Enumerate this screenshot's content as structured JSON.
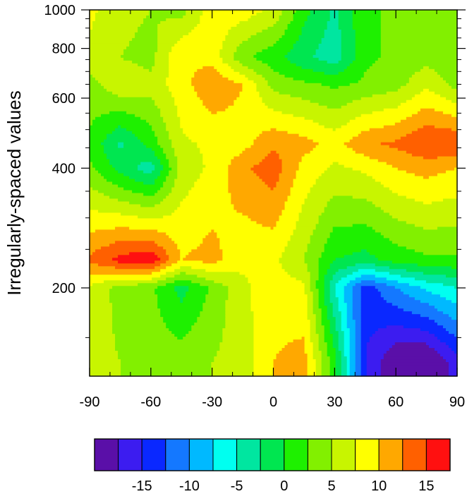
{
  "chart_data": {
    "type": "heatmap",
    "ylabel": "Irregularly-spaced values",
    "y_scale": "log",
    "xlim": [
      -90,
      90
    ],
    "ylim": [
      120,
      1000
    ],
    "xticks": [
      -90,
      -60,
      -30,
      0,
      30,
      60,
      90
    ],
    "xtick_labels": [
      "-90",
      "-60",
      "-30",
      "0",
      "30",
      "60",
      "90"
    ],
    "yticks": [
      200,
      400,
      600,
      800,
      1000
    ],
    "ytick_labels": [
      "200",
      "400",
      "600",
      "800",
      "1000"
    ],
    "grid": false,
    "colorbar": {
      "orientation": "horizontal",
      "placement": "bottom",
      "boundaries": [
        -17.5,
        -15,
        -12.5,
        -10,
        -7.5,
        -5,
        -2.5,
        0,
        2.5,
        5,
        7.5,
        10,
        12.5,
        15
      ],
      "labels": [
        "-15",
        "-10",
        "-5",
        "0",
        "5",
        "10",
        "15"
      ],
      "label_values": [
        -15,
        -10,
        -5,
        0,
        5,
        10,
        15
      ],
      "colors": [
        "#5a0fa8",
        "#3c1cf0",
        "#0a28ff",
        "#1478ff",
        "#00b9ff",
        "#00fff0",
        "#00e6a0",
        "#00e650",
        "#1ef000",
        "#82f000",
        "#c8f500",
        "#ffff00",
        "#ffa800",
        "#ff6000",
        "#ff1010"
      ]
    },
    "x": [
      -90,
      -75,
      -60,
      -45,
      -30,
      -15,
      0,
      15,
      30,
      45,
      60,
      75,
      90
    ],
    "y": [
      130,
      200,
      235,
      400,
      460,
      650,
      760,
      1000
    ],
    "z": [
      [
        6,
        5,
        4,
        4,
        5,
        6,
        10,
        11,
        1,
        -15,
        -20,
        -21,
        -16
      ],
      [
        7,
        4,
        3,
        -1,
        3,
        7,
        9,
        8,
        -5,
        -14,
        -10,
        -7,
        -5
      ],
      [
        13,
        16,
        17,
        10,
        11,
        8,
        8,
        5,
        0,
        -1,
        1,
        2,
        2
      ],
      [
        3,
        -1,
        -4,
        6,
        8,
        12,
        14,
        9,
        7,
        8,
        10,
        11,
        10
      ],
      [
        2,
        -3,
        1,
        7,
        8,
        9,
        12,
        11,
        9,
        12,
        13,
        15,
        15
      ],
      [
        4,
        7,
        6,
        9,
        12,
        10,
        4,
        3,
        2,
        3,
        4,
        7,
        4
      ],
      [
        7,
        5,
        4,
        10,
        9,
        3,
        1,
        -2,
        -4,
        2,
        3,
        4,
        3
      ],
      [
        8,
        6,
        5,
        4,
        9,
        9,
        7,
        1,
        -3,
        2,
        3,
        3,
        3
      ]
    ]
  }
}
